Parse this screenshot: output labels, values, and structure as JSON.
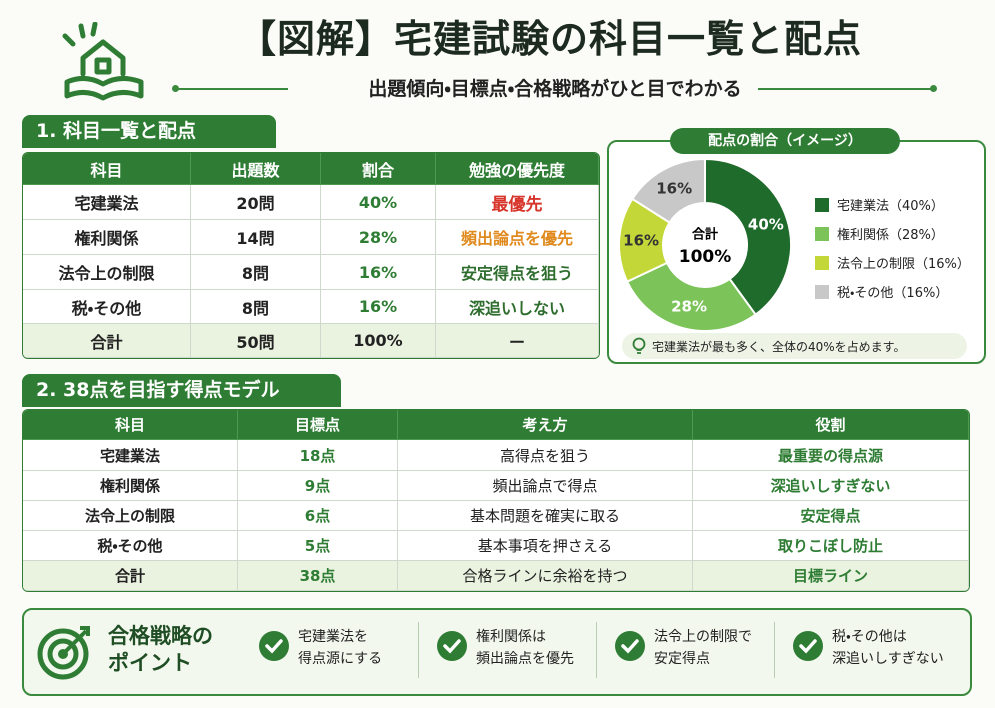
{
  "header": {
    "title": "【図解】宅建試験の科目一覧と配点",
    "subtitle": "出題傾向・目標点・合格戦略がひと目でわかる"
  },
  "section1": {
    "heading": "1. 科目一覧と配点",
    "table": {
      "columns": [
        "科目",
        "出題数",
        "割合",
        "勉強の優先度"
      ],
      "rows": [
        [
          "宅建業法",
          "20問",
          "40%",
          "最優先"
        ],
        [
          "権利関係",
          "14問",
          "28%",
          "頻出論点を優先"
        ],
        [
          "法令上の制限",
          "8問",
          "16%",
          "安定得点を狙う"
        ],
        [
          "税・その他",
          "8問",
          "16%",
          "深追いしない"
        ]
      ],
      "total": [
        "合計",
        "50問",
        "100%",
        "ー"
      ]
    }
  },
  "pie": {
    "type": "pie",
    "title": "配点の割合（イメージ）",
    "values": [
      40,
      28,
      16,
      16
    ],
    "value_labels": [
      "40%",
      "28%",
      "16%",
      "16%"
    ],
    "colors": [
      "#1f6b2b",
      "#7cc35a",
      "#c3d838",
      "#c8c8c8"
    ],
    "legend": [
      "宅建業法（40%）",
      "権利関係（28%）",
      "法令上の制限（16%）",
      "税・その他（16%）"
    ],
    "center_label": [
      "合計",
      "100%"
    ],
    "note": "宅建業法が最も多く、全体の40%を占めます。"
  },
  "section2": {
    "heading": "2. 38点を目指す得点モデル",
    "table": {
      "columns": [
        "科目",
        "目標点",
        "考え方",
        "役割"
      ],
      "rows": [
        [
          "宅建業法",
          "18点",
          "高得点を狙う",
          "最重要の得点源"
        ],
        [
          "権利関係",
          "9点",
          "頻出論点で得点",
          "深追いしすぎない"
        ],
        [
          "法令上の制限",
          "6点",
          "基本問題を確実に取る",
          "安定得点"
        ],
        [
          "税・その他",
          "5点",
          "基本事項を押さえる",
          "取りこぼし防止"
        ]
      ],
      "total": [
        "合計",
        "38点",
        "合格ラインに余裕を持つ",
        "目標ライン"
      ]
    }
  },
  "strategy": {
    "title": [
      "合格戦略の",
      "ポイント"
    ],
    "points": [
      [
        "宅建業法を",
        "得点源にする"
      ],
      [
        "権利関係は",
        "頻出論点を優先"
      ],
      [
        "法令上の制限で",
        "安定得点"
      ],
      [
        "税・その他は",
        "深追いしすぎない"
      ]
    ]
  }
}
